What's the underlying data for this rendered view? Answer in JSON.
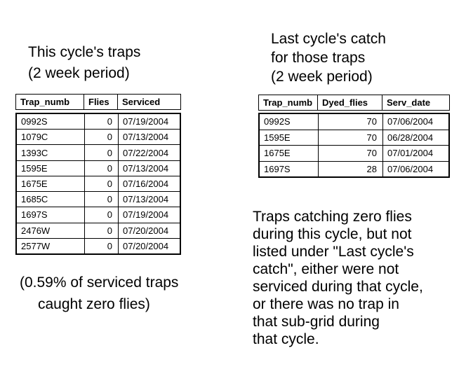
{
  "colors": {
    "background": "#ffffff",
    "text": "#000000",
    "border": "#000000"
  },
  "left_panel": {
    "title": "This cycle's traps\n(2 week period)",
    "table": {
      "headers": [
        "Trap_numb",
        "Flies",
        "Serviced"
      ],
      "rows": [
        [
          "0992S",
          "0",
          "07/19/2004"
        ],
        [
          "1079C",
          "0",
          "07/13/2004"
        ],
        [
          "1393C",
          "0",
          "07/22/2004"
        ],
        [
          "1595E",
          "0",
          "07/13/2004"
        ],
        [
          "1675E",
          "0",
          "07/16/2004"
        ],
        [
          "1685C",
          "0",
          "07/13/2004"
        ],
        [
          "1697S",
          "0",
          "07/19/2004"
        ],
        [
          "2476W",
          "0",
          "07/20/2004"
        ],
        [
          "2577W",
          "0",
          "07/20/2004"
        ]
      ]
    },
    "footnote_line1": "(0.59% of serviced traps",
    "footnote_line2": "caught zero flies)"
  },
  "right_panel": {
    "title": "Last cycle's catch\nfor those traps\n(2 week period)",
    "table": {
      "headers": [
        "Trap_numb",
        "Dyed_flies",
        "Serv_date"
      ],
      "rows": [
        [
          "0992S",
          "70",
          "07/06/2004"
        ],
        [
          "1595E",
          "70",
          "06/28/2004"
        ],
        [
          "1675E",
          "70",
          "07/01/2004"
        ],
        [
          "1697S",
          "28",
          "07/06/2004"
        ]
      ]
    },
    "note": "Traps catching zero flies\nduring this cycle, but not\nlisted under \"Last cycle's\ncatch\", either were not\nserviced during that cycle,\nor there was no trap in\nthat sub-grid during\nthat cycle."
  }
}
